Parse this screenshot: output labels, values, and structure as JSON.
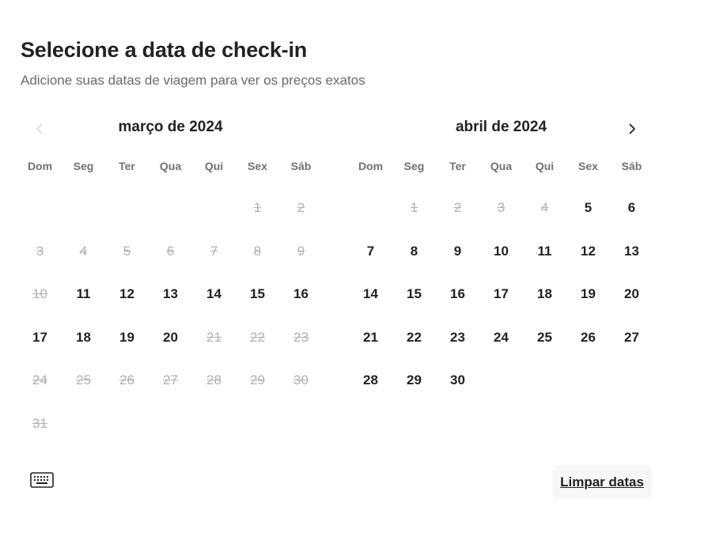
{
  "header": {
    "title": "Selecione a data de check-in",
    "subtitle": "Adicione suas datas de viagem para ver os preços exatos"
  },
  "weekdays": [
    "Dom",
    "Seg",
    "Ter",
    "Qua",
    "Qui",
    "Sex",
    "Sáb"
  ],
  "calendar": {
    "prev_icon": "chevron-left-icon",
    "next_icon": "chevron-right-icon",
    "months": [
      {
        "title": "março de 2024",
        "start_weekday": 5,
        "days_in_month": 31,
        "available_days": [
          11,
          12,
          13,
          14,
          15,
          16,
          17,
          18,
          19,
          20
        ]
      },
      {
        "title": "abril de 2024",
        "start_weekday": 1,
        "days_in_month": 30,
        "available_days": [
          5,
          6,
          7,
          8,
          9,
          10,
          11,
          12,
          13,
          14,
          15,
          16,
          17,
          18,
          19,
          20,
          21,
          22,
          23,
          24,
          25,
          26,
          27,
          28,
          29,
          30
        ]
      }
    ]
  },
  "footer": {
    "keyboard_icon": "keyboard-icon",
    "clear_label": "Limpar datas"
  }
}
